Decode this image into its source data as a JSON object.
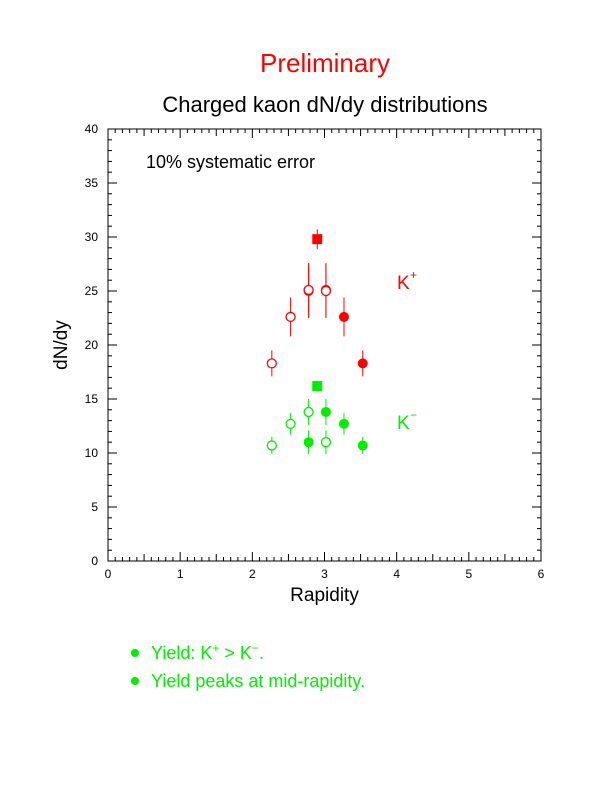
{
  "header": {
    "preliminary": "Preliminary",
    "title": "Charged kaon dN/dy distributions"
  },
  "colors": {
    "kplus": "#ff0000",
    "kminus": "#00ee00",
    "axis": "#000000"
  },
  "chart_data": {
    "type": "scatter",
    "title": "Charged kaon dN/dy distributions",
    "xlabel": "Rapidity",
    "ylabel": "dN/dy",
    "xlim": [
      0,
      6
    ],
    "ylim": [
      0,
      40
    ],
    "x_ticks": [
      0,
      1,
      2,
      3,
      4,
      5,
      6
    ],
    "y_ticks": [
      0,
      5,
      10,
      15,
      20,
      25,
      30,
      35,
      40
    ],
    "grid": false,
    "annotation": "10% systematic error",
    "series": [
      {
        "label": "K",
        "label_sup": "+",
        "color": "#ff0000",
        "marker": "filled-circle",
        "points": [
          {
            "x": 2.78,
            "y": 25.0,
            "err": 2.5
          },
          {
            "x": 3.02,
            "y": 25.1,
            "err": 2.5
          },
          {
            "x": 3.27,
            "y": 22.6,
            "err": 1.8
          },
          {
            "x": 3.53,
            "y": 18.3,
            "err": 1.2
          }
        ]
      },
      {
        "label": "",
        "color": "#ff0000",
        "marker": "open-circle",
        "points": [
          {
            "x": 2.27,
            "y": 18.3,
            "err": 1.2
          },
          {
            "x": 2.53,
            "y": 22.6,
            "err": 1.8
          },
          {
            "x": 2.78,
            "y": 25.1,
            "err": 2.5
          },
          {
            "x": 3.02,
            "y": 25.0,
            "err": 2.5
          }
        ]
      },
      {
        "label": "",
        "color": "#ff0000",
        "marker": "filled-square",
        "points": [
          {
            "x": 2.9,
            "y": 29.8,
            "err": 0.9
          }
        ]
      },
      {
        "label": "K",
        "label_sup": "−",
        "color": "#00ee00",
        "marker": "filled-circle",
        "points": [
          {
            "x": 2.78,
            "y": 11.0,
            "err": 1.1
          },
          {
            "x": 3.02,
            "y": 13.8,
            "err": 1.2
          },
          {
            "x": 3.27,
            "y": 12.7,
            "err": 1.0
          },
          {
            "x": 3.53,
            "y": 10.7,
            "err": 0.8
          }
        ]
      },
      {
        "label": "",
        "color": "#00ee00",
        "marker": "open-circle",
        "points": [
          {
            "x": 2.27,
            "y": 10.7,
            "err": 0.8
          },
          {
            "x": 2.53,
            "y": 12.7,
            "err": 1.0
          },
          {
            "x": 2.78,
            "y": 13.8,
            "err": 1.2
          },
          {
            "x": 3.02,
            "y": 11.0,
            "err": 1.1
          }
        ]
      },
      {
        "label": "",
        "color": "#00ee00",
        "marker": "filled-square",
        "points": [
          {
            "x": 2.9,
            "y": 16.2,
            "err": 0.5
          }
        ]
      }
    ]
  },
  "bullets": [
    {
      "text_a": "Yield: K",
      "sup_a": "+",
      "text_b": " > K",
      "sup_b": "−",
      "text_c": "."
    },
    {
      "text_a": "Yield peaks at mid-rapidity."
    }
  ]
}
